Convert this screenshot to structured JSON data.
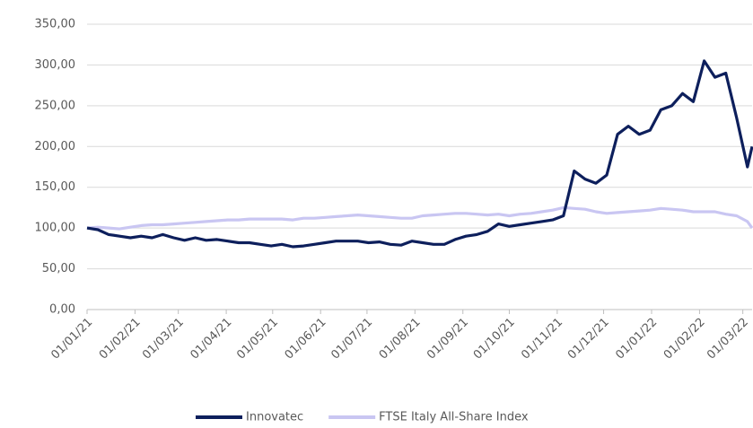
{
  "chart_data": {
    "type": "line",
    "x": [
      "2021-01-01",
      "2021-01-08",
      "2021-01-15",
      "2021-01-22",
      "2021-01-29",
      "2021-02-05",
      "2021-02-12",
      "2021-02-19",
      "2021-02-26",
      "2021-03-05",
      "2021-03-12",
      "2021-03-19",
      "2021-03-26",
      "2021-04-02",
      "2021-04-09",
      "2021-04-16",
      "2021-04-23",
      "2021-04-30",
      "2021-05-07",
      "2021-05-14",
      "2021-05-21",
      "2021-05-28",
      "2021-06-04",
      "2021-06-11",
      "2021-06-18",
      "2021-06-25",
      "2021-07-02",
      "2021-07-09",
      "2021-07-16",
      "2021-07-23",
      "2021-07-30",
      "2021-08-06",
      "2021-08-13",
      "2021-08-20",
      "2021-08-27",
      "2021-09-03",
      "2021-09-10",
      "2021-09-17",
      "2021-09-24",
      "2021-10-01",
      "2021-10-08",
      "2021-10-15",
      "2021-10-22",
      "2021-10-29",
      "2021-11-05",
      "2021-11-12",
      "2021-11-19",
      "2021-11-26",
      "2021-12-03",
      "2021-12-10",
      "2021-12-17",
      "2021-12-24",
      "2021-12-31",
      "2022-01-07",
      "2022-01-14",
      "2022-01-21",
      "2022-01-28",
      "2022-02-04",
      "2022-02-11",
      "2022-02-18",
      "2022-02-25",
      "2022-03-04",
      "2022-03-07"
    ],
    "series": [
      {
        "name": "Innovatec",
        "color": "#0d1f5c",
        "values": [
          100,
          98,
          92,
          90,
          88,
          90,
          88,
          92,
          88,
          85,
          88,
          85,
          86,
          84,
          82,
          82,
          80,
          78,
          80,
          77,
          78,
          80,
          82,
          84,
          84,
          84,
          82,
          83,
          80,
          79,
          84,
          82,
          80,
          80,
          86,
          90,
          92,
          96,
          105,
          102,
          104,
          106,
          108,
          110,
          115,
          170,
          160,
          155,
          165,
          215,
          225,
          215,
          220,
          245,
          250,
          265,
          255,
          305,
          285,
          290,
          235,
          175,
          200
        ]
      },
      {
        "name": "FTSE Italy All-Share Index",
        "color": "#c9c6f2",
        "values": [
          100,
          101,
          100,
          99,
          101,
          103,
          104,
          104,
          105,
          106,
          107,
          108,
          109,
          110,
          110,
          111,
          111,
          111,
          111,
          110,
          112,
          112,
          113,
          114,
          115,
          116,
          115,
          114,
          113,
          112,
          112,
          115,
          116,
          117,
          118,
          118,
          117,
          116,
          117,
          115,
          117,
          118,
          120,
          122,
          125,
          124,
          123,
          120,
          118,
          119,
          120,
          121,
          122,
          124,
          123,
          122,
          120,
          120,
          120,
          117,
          115,
          108,
          100
        ]
      }
    ],
    "xlim": [
      "2021-01-01",
      "2022-03-07"
    ],
    "xticks": [
      {
        "value": "2021-01-01",
        "label": "01/01/21"
      },
      {
        "value": "2021-02-01",
        "label": "01/02/21"
      },
      {
        "value": "2021-03-01",
        "label": "01/03/21"
      },
      {
        "value": "2021-04-01",
        "label": "01/04/21"
      },
      {
        "value": "2021-05-01",
        "label": "01/05/21"
      },
      {
        "value": "2021-06-01",
        "label": "01/06/21"
      },
      {
        "value": "2021-07-01",
        "label": "01/07/21"
      },
      {
        "value": "2021-08-01",
        "label": "01/08/21"
      },
      {
        "value": "2021-09-01",
        "label": "01/09/21"
      },
      {
        "value": "2021-10-01",
        "label": "01/10/21"
      },
      {
        "value": "2021-11-01",
        "label": "01/11/21"
      },
      {
        "value": "2021-12-01",
        "label": "01/12/21"
      },
      {
        "value": "2022-01-01",
        "label": "01/01/22"
      },
      {
        "value": "2022-02-01",
        "label": "01/02/22"
      },
      {
        "value": "2022-03-01",
        "label": "01/03/22"
      }
    ],
    "ylim": [
      0,
      350
    ],
    "yticks": [
      {
        "value": 0,
        "label": "0,00"
      },
      {
        "value": 50,
        "label": "50,00"
      },
      {
        "value": 100,
        "label": "100,00"
      },
      {
        "value": 150,
        "label": "150,00"
      },
      {
        "value": 200,
        "label": "200,00"
      },
      {
        "value": 250,
        "label": "250,00"
      },
      {
        "value": 300,
        "label": "300,00"
      },
      {
        "value": 350,
        "label": "350,00"
      }
    ],
    "grid": true,
    "legend": "bottom"
  }
}
